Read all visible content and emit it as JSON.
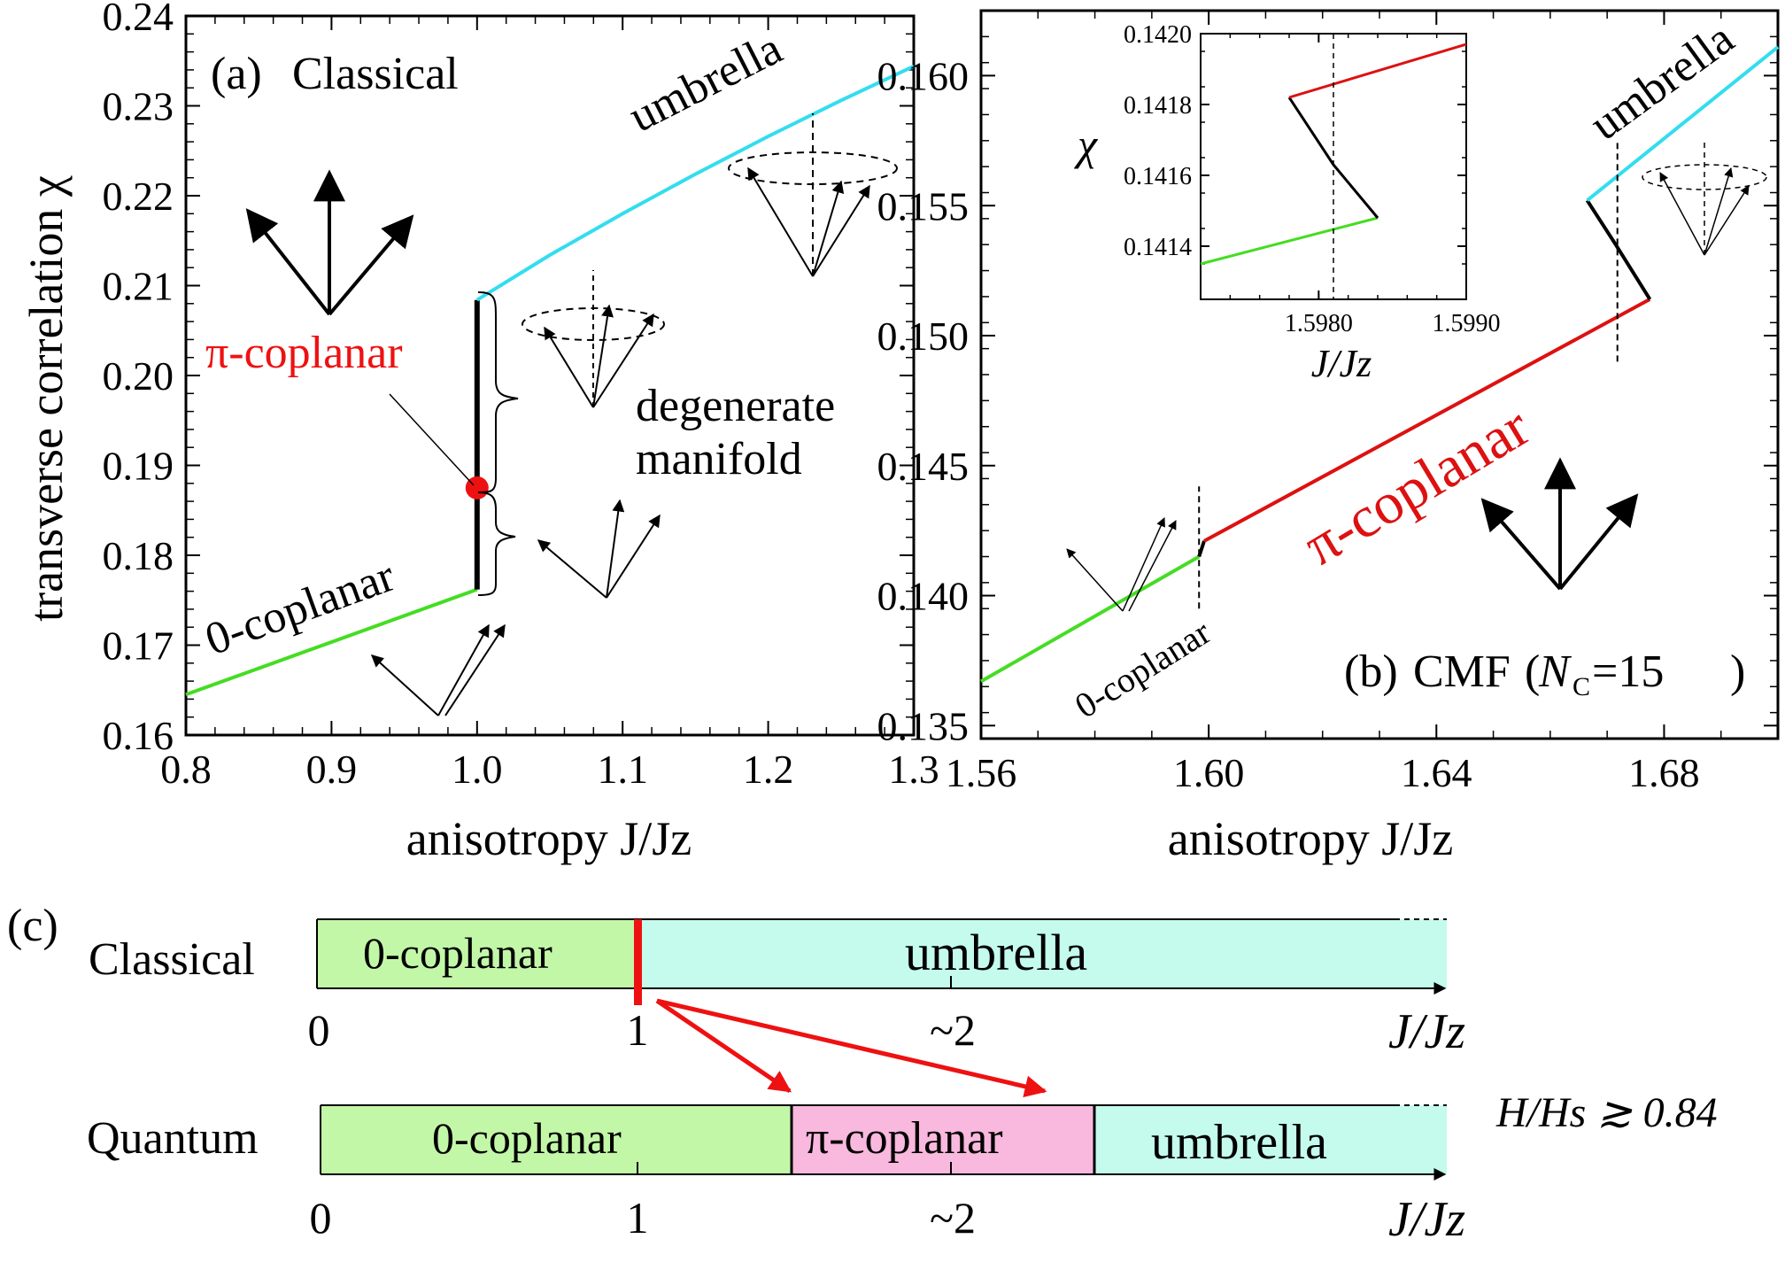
{
  "chart_data": [
    {
      "id": "a",
      "type": "line",
      "panel_label": "(a)",
      "title": "Classical",
      "xlabel": "anisotropy J/Jz",
      "ylabel": "transverse correlation χ",
      "xlim": [
        0.8,
        1.3
      ],
      "ylim": [
        0.16,
        0.24
      ],
      "xticks": [
        "0.8",
        "0.9",
        "1.0",
        "1.1",
        "1.2",
        "1.3"
      ],
      "yticks": [
        "0.16",
        "0.17",
        "0.18",
        "0.19",
        "0.20",
        "0.21",
        "0.22",
        "0.23",
        "0.24"
      ],
      "series": [
        {
          "name": "0-coplanar",
          "color": "#44dd22",
          "x": [
            0.8,
            1.0
          ],
          "y": [
            0.1645,
            0.1762
          ]
        },
        {
          "name": "",
          "color": "#000000",
          "x": [
            1.0,
            1.0
          ],
          "y": [
            0.1762,
            0.2084
          ]
        },
        {
          "name": "umbrella",
          "color": "#33ddee",
          "x": [
            1.0,
            1.05,
            1.1,
            1.15,
            1.2,
            1.25,
            1.3
          ],
          "y": [
            0.2084,
            0.2134,
            0.218,
            0.2224,
            0.2266,
            0.2306,
            0.2344
          ]
        }
      ],
      "marker": {
        "label": "π-coplanar",
        "x": 1.0,
        "y": 0.1875,
        "color": "#ee1111"
      },
      "annotations": [
        "degenerate",
        "manifold"
      ]
    },
    {
      "id": "b",
      "type": "line",
      "panel_label": "(b)",
      "title": "CMF (NC=15)",
      "title_parts": {
        "main": "CMF",
        "n": "N",
        "sub": "C",
        "eq": "=15"
      },
      "xlabel": "anisotropy J/Jz",
      "ylabel": "",
      "xlim": [
        1.56,
        1.7
      ],
      "ylim": [
        0.1345,
        0.1625
      ],
      "xticks": [
        "1.56",
        "1.60",
        "1.64",
        "1.68"
      ],
      "yticks": [
        "0.135",
        "0.140",
        "0.145",
        "0.150",
        "0.155",
        "0.160"
      ],
      "series": [
        {
          "name": "0-coplanar",
          "color": "#44dd22",
          "x": [
            1.56,
            1.5983
          ],
          "y": [
            0.1367,
            0.1415
          ]
        },
        {
          "name": "",
          "color": "#000000",
          "x": [
            1.5983,
            1.5992
          ],
          "y": [
            0.1415,
            0.1421
          ]
        },
        {
          "name": "π-coplanar",
          "color": "#dd1111",
          "x": [
            1.5992,
            1.6775
          ],
          "y": [
            0.1421,
            0.1514
          ]
        },
        {
          "name": "",
          "color": "#000000",
          "x": [
            1.6775,
            1.6715,
            1.6665
          ],
          "y": [
            0.1514,
            0.1535,
            0.1552
          ]
        },
        {
          "name": "umbrella",
          "color": "#33ddee",
          "x": [
            1.6665,
            1.7
          ],
          "y": [
            0.1552,
            0.1611
          ]
        }
      ],
      "inset": {
        "xlim": [
          1.5972,
          1.599
        ],
        "ylim": [
          0.14125,
          0.142
        ],
        "xticks": [
          "1.5980",
          "1.5990"
        ],
        "yticks": [
          "0.1414",
          "0.1416",
          "0.1418",
          "0.1420"
        ],
        "xlabel": "J/Jz",
        "ylabel": "χ",
        "series": [
          {
            "color": "#44dd22",
            "x": [
              1.5972,
              1.5984
            ],
            "y": [
              0.14135,
              0.14148
            ]
          },
          {
            "color": "#000000",
            "x": [
              1.5984,
              1.5981,
              1.5978
            ],
            "y": [
              0.14148,
              0.14163,
              0.14182
            ]
          },
          {
            "color": "#dd1111",
            "x": [
              1.5978,
              1.599
            ],
            "y": [
              0.14182,
              0.14197
            ]
          }
        ],
        "vline_x": 1.5981
      }
    }
  ],
  "phase_diagram": {
    "panel_label": "(c)",
    "x_tick_labels": [
      "0",
      "1",
      "~2"
    ],
    "axis_label": "J/Jz",
    "field_condition": "H/Hs ≳ 0.84",
    "classical": {
      "row_label": "Classical",
      "regions": [
        {
          "label": "0-coplanar",
          "color": "#c3f7a8"
        },
        {
          "label": "umbrella",
          "color": "#c4fbec"
        }
      ],
      "boundary_color": "#ee1111"
    },
    "quantum": {
      "row_label": "Quantum",
      "regions": [
        {
          "label": "0-coplanar",
          "color": "#c3f7a8"
        },
        {
          "label": "π-coplanar",
          "color": "#f9b8dd"
        },
        {
          "label": "umbrella",
          "color": "#c4fbec"
        }
      ]
    },
    "arrow_color": "#ee1111"
  }
}
